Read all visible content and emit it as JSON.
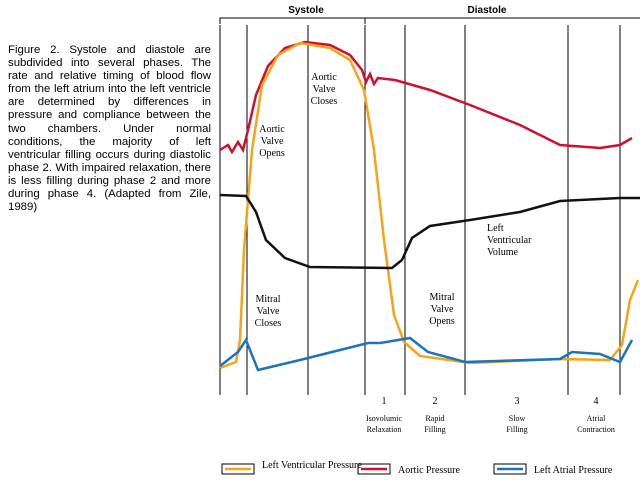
{
  "caption": "Figure 2. Systole and diastole are subdivided into several phases. The rate and relative timing of blood flow from the left atrium into the left ventricle are determined by differences in pressure and compliance between the two chambers. Under normal conditions, the majority of left ventricular filling occurs during diastolic phase 2. With impaired relaxation, there is less filling during phase 2 and more during phase 4. (Adapted from Zile, 1989)",
  "periods": [
    "Systole",
    "Diastole"
  ],
  "annotations": {
    "aortic_valve_opens": [
      "Aortic",
      "Valve",
      "Opens"
    ],
    "aortic_valve_closes": [
      "Aortic",
      "Valve",
      "Closes"
    ],
    "lv_volume": [
      "Left",
      "Ventricular",
      "Volume"
    ],
    "mitral_valve_closes": [
      "Mitral",
      "Valve",
      "Closes"
    ],
    "mitral_valve_opens": [
      "Mitral",
      "Valve",
      "Opens"
    ]
  },
  "phases": [
    {
      "number": "1",
      "name": [
        "Isovolumic",
        "Relaxation"
      ]
    },
    {
      "number": "2",
      "name": [
        "Rapid",
        "Filling"
      ]
    },
    {
      "number": "3",
      "name": [
        "Slow",
        "Filling"
      ]
    },
    {
      "number": "4",
      "name": [
        "Atrial",
        "Contraction"
      ]
    }
  ],
  "legend": [
    "Left Ventricular Pressure",
    "Aortic Pressure",
    "Left Atrial Pressure"
  ]
}
